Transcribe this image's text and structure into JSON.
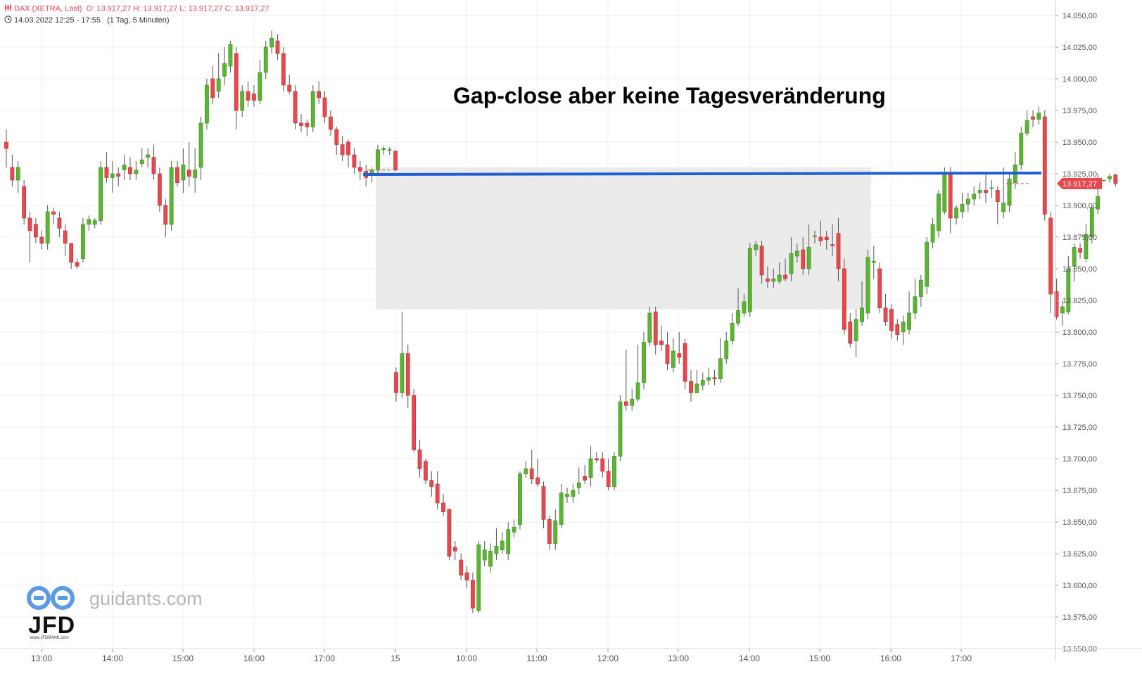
{
  "header": {
    "instrument": "DAX (XETRA, Last)",
    "ohlc": "O: 13.917,27  H: 13.917,27  L: 13.917,27  C: 13.917,27",
    "range": "14.03.2022 12:25 - 17:55",
    "interval": "(1 Tag, 5 Minuten)"
  },
  "annotation": "Gap-close aber keine Tagesveränderung",
  "last_price_label": "13.917,27",
  "watermark": {
    "site": "guidants.com",
    "brand": "JFD",
    "brand_url": "www.JFDBANK.com"
  },
  "colors": {
    "up": "#5cb532",
    "down": "#e5484d",
    "level_line": "#1f5fcf",
    "gap_zone": "#e8e8e8",
    "grid": "#efefef",
    "axis_text": "#555555"
  },
  "chart_data": {
    "type": "candlestick",
    "y_axis_position": "right",
    "ylim": [
      13550,
      14050
    ],
    "y_ticks": [
      "13.550,00",
      "13.575,00",
      "13.600,00",
      "13.625,00",
      "13.650,00",
      "13.675,00",
      "13.700,00",
      "13.725,00",
      "13.750,00",
      "13.775,00",
      "13.800,00",
      "13.825,00",
      "13.850,00",
      "13.875,00",
      "13.900,00",
      "13.925,00",
      "13.950,00",
      "13.975,00",
      "14.000,00",
      "14.025,00",
      "14.050,00"
    ],
    "x_ticks": [
      "13:00",
      "14:00",
      "15:00",
      "16:00",
      "17:00",
      "15",
      "10:00",
      "11:00",
      "12:00",
      "13:00",
      "14:00",
      "15:00",
      "16:00",
      "17:00"
    ],
    "grid": true,
    "last_price": 13917.27,
    "horizontal_level": 13925,
    "gap_zone": [
      13818,
      13930
    ],
    "day1_candles": [
      [
        13950,
        13945,
        13960,
        13930
      ],
      [
        13930,
        13920,
        13940,
        13915
      ],
      [
        13920,
        13930,
        13935,
        13910
      ],
      [
        13915,
        13890,
        13920,
        13885
      ],
      [
        13890,
        13880,
        13895,
        13855
      ],
      [
        13885,
        13875,
        13890,
        13870
      ],
      [
        13875,
        13870,
        13880,
        13865
      ],
      [
        13870,
        13895,
        13900,
        13865
      ],
      [
        13895,
        13893,
        13898,
        13885
      ],
      [
        13890,
        13882,
        13895,
        13875
      ],
      [
        13880,
        13870,
        13885,
        13860
      ],
      [
        13870,
        13855,
        13870,
        13850
      ],
      [
        13855,
        13852,
        13858,
        13850
      ],
      [
        13858,
        13885,
        13890,
        13855
      ],
      [
        13885,
        13889,
        13892,
        13880
      ],
      [
        13885,
        13888,
        13890,
        13882
      ],
      [
        13888,
        13930,
        13935,
        13885
      ],
      [
        13930,
        13922,
        13942,
        13918
      ],
      [
        13922,
        13925,
        13935,
        13910
      ],
      [
        13925,
        13923,
        13930,
        13915
      ],
      [
        13928,
        13932,
        13940,
        13920
      ],
      [
        13930,
        13925,
        13938,
        13920
      ],
      [
        13925,
        13928,
        13935,
        13920
      ],
      [
        13933,
        13936,
        13945,
        13930
      ],
      [
        13938,
        13940,
        13945,
        13930
      ],
      [
        13938,
        13925,
        13948,
        13920
      ],
      [
        13925,
        13900,
        13930,
        13895
      ],
      [
        13900,
        13885,
        13905,
        13875
      ],
      [
        13885,
        13930,
        13935,
        13880
      ],
      [
        13930,
        13918,
        13935,
        13915
      ],
      [
        13920,
        13932,
        13945,
        13910
      ],
      [
        13928,
        13923,
        13950,
        13915
      ],
      [
        13922,
        13928,
        13945,
        13910
      ],
      [
        13930,
        13965,
        13970,
        13920
      ],
      [
        13965,
        13995,
        14000,
        13960
      ],
      [
        14000,
        13985,
        14010,
        13980
      ],
      [
        13990,
        14000,
        14020,
        13985
      ],
      [
        14002,
        14012,
        14025,
        13995
      ],
      [
        14010,
        14027,
        14030,
        14005
      ],
      [
        14020,
        13975,
        14025,
        13960
      ],
      [
        13975,
        13990,
        13995,
        13970
      ],
      [
        13990,
        13983,
        13998,
        13978
      ],
      [
        13988,
        13983,
        13995,
        13978
      ],
      [
        13983,
        14005,
        14015,
        13980
      ],
      [
        14005,
        14025,
        14030,
        14000
      ],
      [
        14025,
        14032,
        14038,
        14020
      ],
      [
        14030,
        14020,
        14035,
        14015
      ],
      [
        14020,
        13995,
        14025,
        13990
      ],
      [
        13995,
        13990,
        14003,
        13988
      ],
      [
        13990,
        13965,
        13995,
        13960
      ],
      [
        13965,
        13963,
        13972,
        13958
      ],
      [
        13965,
        13962,
        13968,
        13955
      ],
      [
        13962,
        13990,
        13995,
        13958
      ],
      [
        13990,
        13985,
        13998,
        13980
      ],
      [
        13985,
        13970,
        13990,
        13965
      ],
      [
        13970,
        13960,
        13975,
        13955
      ],
      [
        13960,
        13948,
        13962,
        13940
      ],
      [
        13948,
        13940,
        13955,
        13935
      ],
      [
        13950,
        13940,
        13952,
        13930
      ],
      [
        13940,
        13930,
        13945,
        13925
      ],
      [
        13930,
        13927,
        13935,
        13920
      ],
      [
        13927,
        13922,
        13932,
        13915
      ],
      [
        13925,
        13928,
        13930,
        13918
      ],
      [
        13928,
        13944,
        13948,
        13925
      ],
      [
        13944,
        13945,
        13947,
        13940
      ],
      [
        13944,
        13944,
        13946,
        13940
      ],
      [
        13943,
        13928,
        13943,
        13927
      ]
    ],
    "day2_candles": [
      [
        13768,
        13752,
        13772,
        13745
      ],
      [
        13752,
        13783,
        13816,
        13748
      ],
      [
        13783,
        13750,
        13790,
        13740
      ],
      [
        13750,
        13707,
        13755,
        13705
      ],
      [
        13707,
        13692,
        13715,
        13685
      ],
      [
        13698,
        13683,
        13700,
        13680
      ],
      [
        13683,
        13678,
        13690,
        13670
      ],
      [
        13680,
        13665,
        13690,
        13660
      ],
      [
        13665,
        13658,
        13672,
        13655
      ],
      [
        13660,
        13623,
        13660,
        13620
      ],
      [
        13630,
        13627,
        13635,
        13620
      ],
      [
        13620,
        13608,
        13625,
        13604
      ],
      [
        13610,
        13604,
        13615,
        13598
      ],
      [
        13604,
        13582,
        13610,
        13578
      ],
      [
        13580,
        13632,
        13635,
        13578
      ],
      [
        13620,
        13628,
        13635,
        13615
      ],
      [
        13615,
        13627,
        13633,
        13610
      ],
      [
        13625,
        13631,
        13645,
        13620
      ],
      [
        13628,
        13635,
        13642,
        13625
      ],
      [
        13625,
        13644,
        13650,
        13620
      ],
      [
        13642,
        13646,
        13652,
        13638
      ],
      [
        13648,
        13688,
        13690,
        13644
      ],
      [
        13688,
        13692,
        13698,
        13685
      ],
      [
        13692,
        13684,
        13707,
        13680
      ],
      [
        13685,
        13680,
        13700,
        13678
      ],
      [
        13678,
        13652,
        13682,
        13645
      ],
      [
        13652,
        13633,
        13655,
        13628
      ],
      [
        13633,
        13651,
        13660,
        13628
      ],
      [
        13648,
        13673,
        13680,
        13645
      ],
      [
        13670,
        13672,
        13677,
        13665
      ],
      [
        13670,
        13675,
        13680,
        13665
      ],
      [
        13677,
        13681,
        13693,
        13672
      ],
      [
        13686,
        13683,
        13695,
        13680
      ],
      [
        13685,
        13700,
        13710,
        13678
      ],
      [
        13700,
        13699,
        13705,
        13697
      ],
      [
        13700,
        13690,
        13705,
        13685
      ],
      [
        13690,
        13678,
        13700,
        13675
      ],
      [
        13678,
        13702,
        13705,
        13675
      ],
      [
        13702,
        13745,
        13750,
        13698
      ],
      [
        13745,
        13742,
        13786,
        13738
      ],
      [
        13742,
        13747,
        13755,
        13738
      ],
      [
        13747,
        13760,
        13790,
        13745
      ],
      [
        13760,
        13792,
        13800,
        13755
      ],
      [
        13792,
        13815,
        13820,
        13789
      ],
      [
        13816,
        13790,
        13820,
        13782
      ],
      [
        13793,
        13790,
        13805,
        13785
      ],
      [
        13790,
        13775,
        13800,
        13770
      ],
      [
        13772,
        13785,
        13795,
        13768
      ],
      [
        13783,
        13780,
        13800,
        13775
      ],
      [
        13791,
        13761,
        13795,
        13755
      ],
      [
        13761,
        13752,
        13770,
        13745
      ],
      [
        13752,
        13759,
        13770,
        13752
      ],
      [
        13758,
        13762,
        13768,
        13754
      ],
      [
        13762,
        13764,
        13772,
        13758
      ],
      [
        13764,
        13763,
        13770,
        13758
      ],
      [
        13763,
        13779,
        13795,
        13760
      ],
      [
        13779,
        13793,
        13800,
        13775
      ],
      [
        13793,
        13807,
        13815,
        13790
      ],
      [
        13807,
        13817,
        13835,
        13805
      ],
      [
        13815,
        13824,
        13830,
        13812
      ],
      [
        13816,
        13866,
        13870,
        13812
      ],
      [
        13865,
        13869,
        13872,
        13860
      ],
      [
        13868,
        13845,
        13872,
        13838
      ],
      [
        13842,
        13840,
        13852,
        13835
      ],
      [
        13840,
        13842,
        13850,
        13835
      ],
      [
        13840,
        13845,
        13855,
        13838
      ],
      [
        13845,
        13842,
        13858,
        13840
      ],
      [
        13846,
        13862,
        13875,
        13840
      ],
      [
        13860,
        13864,
        13870,
        13855
      ],
      [
        13865,
        13850,
        13875,
        13845
      ],
      [
        13850,
        13867,
        13885,
        13845
      ],
      [
        13876,
        13876,
        13880,
        13870
      ],
      [
        13875,
        13872,
        13888,
        13868
      ],
      [
        13875,
        13873,
        13880,
        13865
      ],
      [
        13869,
        13868,
        13885,
        13860
      ],
      [
        13878,
        13850,
        13890,
        13840
      ],
      [
        13850,
        13802,
        13858,
        13798
      ],
      [
        13808,
        13791,
        13815,
        13788
      ],
      [
        13793,
        13810,
        13818,
        13780
      ],
      [
        13808,
        13819,
        13840,
        13805
      ],
      [
        13815,
        13859,
        13865,
        13810
      ],
      [
        13855,
        13856,
        13868,
        13842
      ],
      [
        13850,
        13819,
        13855,
        13815
      ],
      [
        13819,
        13808,
        13830,
        13805
      ],
      [
        13818,
        13801,
        13822,
        13795
      ],
      [
        13806,
        13798,
        13810,
        13793
      ],
      [
        13800,
        13808,
        13813,
        13790
      ],
      [
        13802,
        13815,
        13832,
        13798
      ],
      [
        13815,
        13828,
        13842,
        13810
      ],
      [
        13828,
        13841,
        13845,
        13820
      ],
      [
        13836,
        13871,
        13875,
        13830
      ],
      [
        13871,
        13885,
        13890,
        13866
      ],
      [
        13880,
        13909,
        13912,
        13875
      ],
      [
        13895,
        13925,
        13930,
        13893
      ],
      [
        13925,
        13890,
        13930,
        13878
      ],
      [
        13890,
        13898,
        13900,
        13885
      ],
      [
        13895,
        13901,
        13910,
        13890
      ],
      [
        13901,
        13905,
        13910,
        13895
      ],
      [
        13905,
        13909,
        13915,
        13900
      ],
      [
        13910,
        13912,
        13918,
        13905
      ],
      [
        13912,
        13910,
        13925,
        13902
      ],
      [
        13914,
        13914,
        13920,
        13906
      ],
      [
        13912,
        13903,
        13915,
        13885
      ],
      [
        13895,
        13902,
        13930,
        13890
      ],
      [
        13900,
        13921,
        13925,
        13895
      ],
      [
        13918,
        13932,
        13942,
        13913
      ],
      [
        13932,
        13957,
        13962,
        13928
      ],
      [
        13957,
        13967,
        13975,
        13955
      ],
      [
        13970,
        13968,
        13975,
        13962
      ],
      [
        13968,
        13973,
        13978,
        13964
      ],
      [
        13970,
        13893,
        13975,
        13888
      ],
      [
        13890,
        13830,
        13895,
        13815
      ],
      [
        13832,
        13812,
        13842,
        13810
      ],
      [
        13815,
        13820,
        13825,
        13805
      ],
      [
        13816,
        13850,
        13860,
        13814
      ],
      [
        13852,
        13867,
        13870,
        13840
      ],
      [
        13866,
        13863,
        13870,
        13858
      ],
      [
        13858,
        13877,
        13885,
        13855
      ],
      [
        13875,
        13898,
        13900,
        13870
      ],
      [
        13897,
        13907,
        13925,
        13893
      ],
      [
        13920,
        13920,
        13920,
        13920
      ],
      [
        13921,
        13923,
        13925,
        13918
      ],
      [
        13924,
        13917.27,
        13925,
        13915
      ]
    ]
  }
}
